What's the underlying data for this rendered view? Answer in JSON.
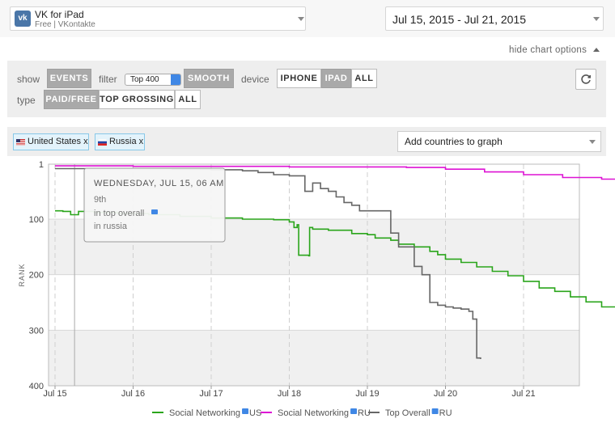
{
  "app": {
    "name": "VK for iPad",
    "subtitle": "Free | VKontakte",
    "icon": "vk-logo-icon"
  },
  "date_range": "Jul 15, 2015 - Jul 21, 2015",
  "hide_options_label": "hide chart options",
  "options": {
    "show_label": "show",
    "events_label": "EVENTS",
    "filter_label": "filter",
    "filter_value": "Top 400",
    "smooth_label": "SMOOTH",
    "device_label": "device",
    "device_options": [
      "IPHONE",
      "IPAD",
      "ALL"
    ],
    "type_label": "type",
    "type_options": [
      "PAID/FREE",
      "TOP GROSSING",
      "ALL"
    ],
    "refresh_icon": "refresh-icon"
  },
  "countries": [
    "United States x",
    "Russia x"
  ],
  "add_countries_placeholder": "Add countries to graph",
  "colors": {
    "us_social": "#2aa51b",
    "ru_social": "#dd12d4",
    "ru_overall": "#666666",
    "accent": "#3f87e5"
  },
  "tooltip": {
    "title": "WEDNESDAY, JUL 15, 06 AM",
    "rank": "9th",
    "category": "in top overall",
    "country": "in russia"
  },
  "chart_data": {
    "type": "line",
    "ylabel": "RANK",
    "ylim": [
      1,
      400
    ],
    "y_inverted": true,
    "yticks": [
      1,
      100,
      200,
      300,
      400
    ],
    "x_ticks": [
      "Jul 15",
      "Jul 16",
      "Jul 17",
      "Jul 18",
      "Jul 19",
      "Jul 20",
      "Jul 21"
    ],
    "xlim_days": [
      -0.1,
      7.0
    ],
    "series": [
      {
        "name": "Social Networking",
        "country": "US",
        "color": "#2aa51b",
        "points": [
          [
            0.0,
            85
          ],
          [
            0.1,
            86
          ],
          [
            0.2,
            92
          ],
          [
            0.3,
            86
          ],
          [
            0.5,
            88
          ],
          [
            0.8,
            90
          ],
          [
            1.2,
            92
          ],
          [
            1.6,
            95
          ],
          [
            2.0,
            98
          ],
          [
            2.4,
            100
          ],
          [
            2.8,
            101
          ],
          [
            3.0,
            105
          ],
          [
            3.06,
            115
          ],
          [
            3.1,
            110
          ],
          [
            3.12,
            165
          ],
          [
            3.25,
            166
          ],
          [
            3.26,
            115
          ],
          [
            3.3,
            118
          ],
          [
            3.5,
            120
          ],
          [
            3.8,
            126
          ],
          [
            4.0,
            128
          ],
          [
            4.1,
            134
          ],
          [
            4.3,
            138
          ],
          [
            4.4,
            145
          ],
          [
            4.6,
            150
          ],
          [
            4.8,
            158
          ],
          [
            4.9,
            164
          ],
          [
            5.0,
            172
          ],
          [
            5.2,
            178
          ],
          [
            5.4,
            186
          ],
          [
            5.6,
            194
          ],
          [
            5.8,
            202
          ],
          [
            6.0,
            212
          ],
          [
            6.2,
            224
          ],
          [
            6.4,
            230
          ],
          [
            6.6,
            240
          ],
          [
            6.8,
            249
          ],
          [
            7.0,
            258
          ],
          [
            7.2,
            262
          ],
          [
            7.5,
            268
          ],
          [
            7.65,
            269
          ],
          [
            7.8,
            270
          ]
        ]
      },
      {
        "name": "Social Networking",
        "country": "RU",
        "color": "#dd12d4",
        "points": [
          [
            0.0,
            4
          ],
          [
            1.0,
            5
          ],
          [
            2.0,
            5
          ],
          [
            3.0,
            6
          ],
          [
            4.0,
            6
          ],
          [
            4.5,
            7
          ],
          [
            5.0,
            10
          ],
          [
            5.5,
            15
          ],
          [
            6.0,
            20
          ],
          [
            6.5,
            25
          ],
          [
            7.0,
            28
          ],
          [
            7.3,
            30
          ],
          [
            7.5,
            33
          ],
          [
            7.7,
            40
          ],
          [
            7.8,
            45
          ]
        ]
      },
      {
        "name": "Top Overall",
        "country": "RU",
        "color": "#666666",
        "points": [
          [
            0.0,
            9
          ],
          [
            1.0,
            9
          ],
          [
            1.5,
            10
          ],
          [
            2.0,
            11
          ],
          [
            2.4,
            13
          ],
          [
            2.6,
            16
          ],
          [
            2.8,
            20
          ],
          [
            3.0,
            22
          ],
          [
            3.1,
            22
          ],
          [
            3.2,
            50
          ],
          [
            3.3,
            35
          ],
          [
            3.4,
            45
          ],
          [
            3.5,
            50
          ],
          [
            3.6,
            60
          ],
          [
            3.7,
            70
          ],
          [
            3.8,
            75
          ],
          [
            3.9,
            85
          ],
          [
            4.0,
            85
          ],
          [
            4.1,
            85
          ],
          [
            4.2,
            85
          ],
          [
            4.3,
            125
          ],
          [
            4.4,
            150
          ],
          [
            4.5,
            150
          ],
          [
            4.6,
            185
          ],
          [
            4.7,
            200
          ],
          [
            4.8,
            250
          ],
          [
            4.9,
            255
          ],
          [
            5.0,
            258
          ],
          [
            5.1,
            260
          ],
          [
            5.2,
            262
          ],
          [
            5.3,
            266
          ],
          [
            5.35,
            280
          ],
          [
            5.4,
            350
          ],
          [
            5.45,
            352
          ]
        ]
      }
    ],
    "legend": [
      {
        "label": "Social Networking",
        "suffix": "US",
        "color": "#2aa51b"
      },
      {
        "label": "Social Networking",
        "suffix": "RU",
        "color": "#dd12d4"
      },
      {
        "label": "Top Overall",
        "suffix": "RU",
        "color": "#666666"
      }
    ]
  }
}
